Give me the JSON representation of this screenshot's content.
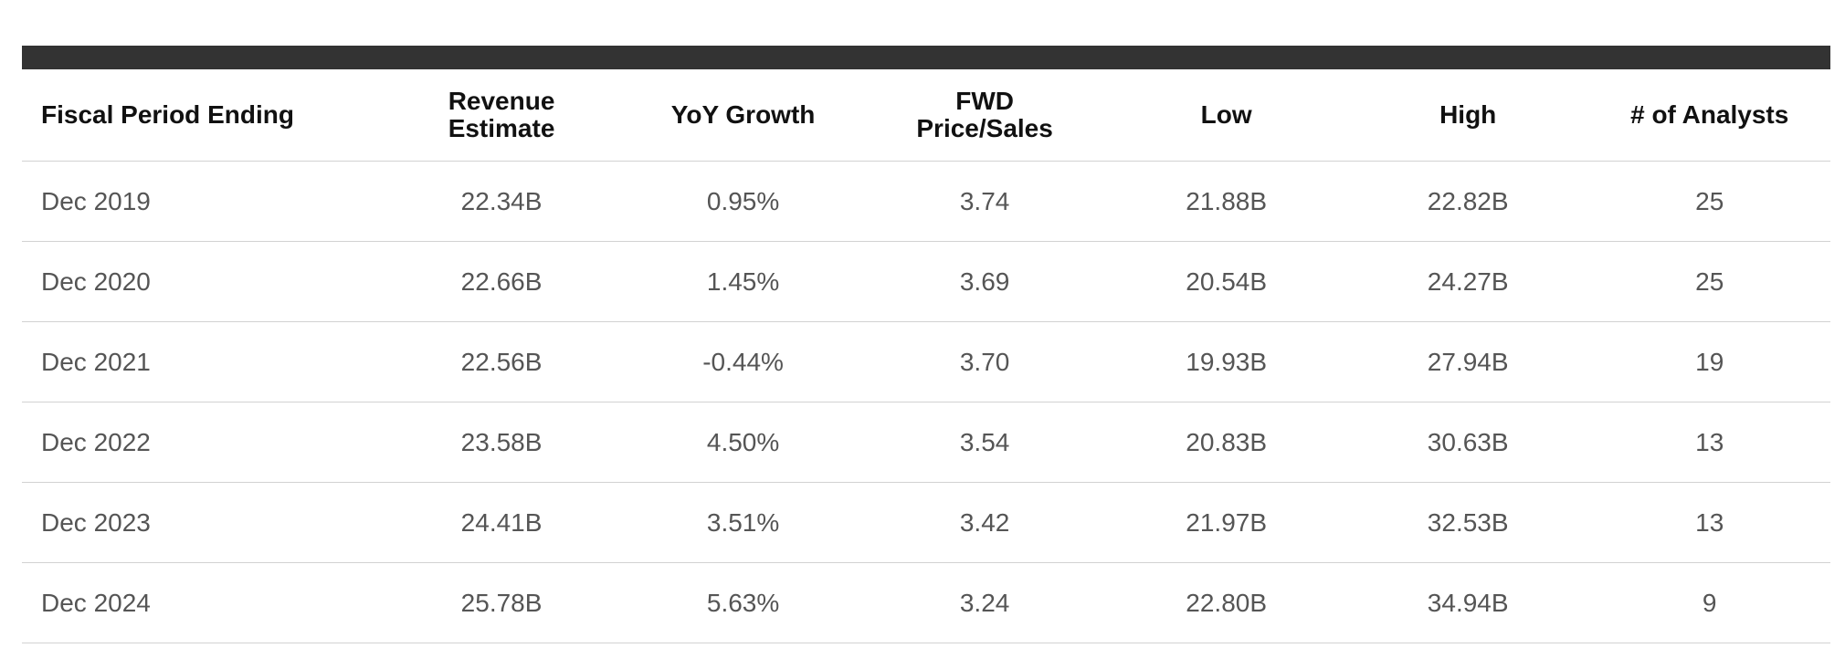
{
  "table": {
    "headers": [
      {
        "line1": "Fiscal Period Ending",
        "line2": ""
      },
      {
        "line1": "Revenue",
        "line2": "Estimate"
      },
      {
        "line1": "YoY Growth",
        "line2": ""
      },
      {
        "line1": "FWD",
        "line2": "Price/Sales"
      },
      {
        "line1": "Low",
        "line2": ""
      },
      {
        "line1": "High",
        "line2": ""
      },
      {
        "line1": "# of Analysts",
        "line2": ""
      }
    ],
    "rows": [
      [
        "Dec 2019",
        "22.34B",
        "0.95%",
        "3.74",
        "21.88B",
        "22.82B",
        "25"
      ],
      [
        "Dec 2020",
        "22.66B",
        "1.45%",
        "3.69",
        "20.54B",
        "24.27B",
        "25"
      ],
      [
        "Dec 2021",
        "22.56B",
        "-0.44%",
        "3.70",
        "19.93B",
        "27.94B",
        "19"
      ],
      [
        "Dec 2022",
        "23.58B",
        "4.50%",
        "3.54",
        "20.83B",
        "30.63B",
        "13"
      ],
      [
        "Dec 2023",
        "24.41B",
        "3.51%",
        "3.42",
        "21.97B",
        "32.53B",
        "13"
      ],
      [
        "Dec 2024",
        "25.78B",
        "5.63%",
        "3.24",
        "22.80B",
        "34.94B",
        "9"
      ]
    ]
  }
}
